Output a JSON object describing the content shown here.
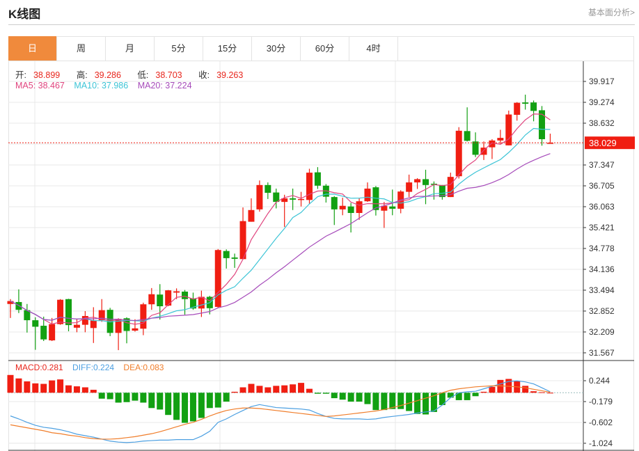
{
  "header": {
    "title": "K线图",
    "link": "基本面分析>"
  },
  "tabs": [
    {
      "label": "日",
      "active": true
    },
    {
      "label": "周"
    },
    {
      "label": "月"
    },
    {
      "label": "5分"
    },
    {
      "label": "15分"
    },
    {
      "label": "30分"
    },
    {
      "label": "60分"
    },
    {
      "label": "4时"
    }
  ],
  "ohlc": {
    "open_label": "开:",
    "open": "38.899",
    "high_label": "高:",
    "high": "39.286",
    "low_label": "低:",
    "low": "38.703",
    "close_label": "收:",
    "close": "39.263"
  },
  "ma": {
    "ma5_label": "MA5: 38.467",
    "ma10_label": "MA10: 37.986",
    "ma20_label": "MA20: 37.224"
  },
  "macd": {
    "macd_label": "MACD:0.281",
    "diff_label": "DIFF:0.224",
    "dea_label": "DEA:0.083"
  },
  "colors": {
    "up": "#f01e12",
    "down": "#12a012",
    "ma5": "#e0447e",
    "ma10": "#3cc4d6",
    "ma20": "#a64bba",
    "diff": "#4b9fe1",
    "dea": "#f07d2a",
    "accent": "#f08a3c"
  },
  "chart_data": [
    {
      "type": "candlestick",
      "current_price": "38.029",
      "y_ticks": [
        "39.917",
        "39.274",
        "38.632",
        "37.347",
        "36.705",
        "36.063",
        "35.421",
        "34.778",
        "34.136",
        "33.494",
        "32.852",
        "32.209",
        "31.567"
      ],
      "ylim": [
        31.567,
        39.917
      ],
      "grid": true,
      "candles": [
        [
          33.07,
          33.22,
          32.64,
          33.16
        ],
        [
          33.13,
          33.52,
          32.79,
          32.89
        ],
        [
          32.88,
          33.07,
          32.19,
          32.57
        ],
        [
          32.57,
          32.66,
          31.66,
          32.37
        ],
        [
          32.4,
          32.68,
          31.93,
          31.98
        ],
        [
          31.95,
          32.64,
          31.93,
          32.45
        ],
        [
          32.45,
          33.22,
          32.43,
          33.2
        ],
        [
          33.22,
          33.23,
          32.23,
          32.42
        ],
        [
          32.34,
          32.61,
          32.2,
          32.43
        ],
        [
          32.43,
          32.85,
          32.2,
          32.7
        ],
        [
          32.33,
          32.97,
          31.87,
          32.56
        ],
        [
          32.57,
          33.22,
          32.52,
          32.88
        ],
        [
          32.89,
          32.95,
          32.08,
          32.18
        ],
        [
          32.18,
          32.63,
          31.65,
          32.61
        ],
        [
          32.63,
          32.66,
          31.86,
          32.24
        ],
        [
          32.25,
          32.6,
          32.22,
          32.32
        ],
        [
          32.31,
          33.11,
          32.11,
          33.06
        ],
        [
          33.06,
          33.56,
          32.89,
          33.37
        ],
        [
          33.36,
          33.68,
          32.59,
          33.0
        ],
        [
          33.02,
          33.5,
          33.0,
          33.49
        ],
        [
          33.42,
          33.55,
          33.22,
          33.46
        ],
        [
          33.45,
          33.5,
          32.74,
          33.22
        ],
        [
          33.24,
          33.42,
          32.89,
          32.93
        ],
        [
          32.93,
          33.48,
          32.67,
          33.29
        ],
        [
          33.29,
          33.32,
          32.75,
          32.94
        ],
        [
          32.98,
          34.76,
          32.96,
          34.73
        ],
        [
          34.7,
          34.75,
          34.16,
          34.48
        ],
        [
          34.5,
          34.62,
          34.18,
          34.46
        ],
        [
          34.45,
          36.04,
          34.45,
          35.62
        ],
        [
          35.6,
          36.32,
          35.6,
          35.96
        ],
        [
          35.98,
          36.87,
          35.91,
          36.73
        ],
        [
          36.73,
          36.81,
          36.3,
          36.49
        ],
        [
          36.5,
          36.62,
          36.01,
          36.21
        ],
        [
          36.21,
          36.43,
          35.44,
          36.32
        ],
        [
          36.32,
          36.62,
          35.96,
          36.28
        ],
        [
          36.27,
          36.52,
          36.07,
          36.3
        ],
        [
          36.27,
          37.23,
          36.14,
          37.11
        ],
        [
          37.12,
          37.28,
          36.61,
          36.71
        ],
        [
          36.71,
          36.76,
          36.19,
          36.37
        ],
        [
          36.36,
          36.39,
          35.5,
          35.98
        ],
        [
          35.98,
          36.34,
          35.8,
          36.09
        ],
        [
          36.07,
          36.18,
          35.27,
          35.87
        ],
        [
          35.87,
          36.32,
          35.66,
          36.23
        ],
        [
          36.23,
          36.81,
          36.21,
          36.62
        ],
        [
          36.66,
          36.7,
          35.79,
          35.96
        ],
        [
          35.94,
          36.21,
          35.41,
          36.09
        ],
        [
          36.07,
          36.59,
          35.8,
          36.0
        ],
        [
          36.0,
          36.57,
          35.86,
          36.53
        ],
        [
          36.52,
          37.05,
          36.36,
          36.81
        ],
        [
          36.81,
          36.94,
          36.61,
          36.91
        ],
        [
          36.91,
          37.2,
          36.14,
          36.73
        ],
        [
          36.77,
          36.84,
          36.28,
          36.75
        ],
        [
          36.73,
          36.73,
          36.28,
          36.36
        ],
        [
          36.36,
          37.11,
          36.36,
          36.98
        ],
        [
          37.0,
          38.51,
          36.93,
          38.4
        ],
        [
          38.39,
          39.12,
          38.07,
          38.09
        ],
        [
          38.07,
          38.35,
          37.59,
          37.66
        ],
        [
          37.66,
          38.07,
          37.5,
          37.88
        ],
        [
          37.89,
          38.14,
          37.53,
          38.1
        ],
        [
          38.1,
          38.43,
          38.0,
          38.18
        ],
        [
          37.95,
          39.02,
          37.95,
          38.9
        ],
        [
          38.89,
          39.28,
          38.71,
          39.26
        ],
        [
          39.27,
          39.51,
          39.05,
          39.23
        ],
        [
          39.27,
          39.33,
          38.69,
          39.01
        ],
        [
          39.03,
          39.16,
          37.94,
          38.14
        ],
        [
          38.02,
          38.31,
          38.01,
          38.03
        ]
      ],
      "candle_fields": [
        "open",
        "high",
        "low",
        "close"
      ]
    },
    {
      "type": "macd",
      "y_ticks": [
        "0.244",
        "-0.179",
        "-0.602",
        "-1.024"
      ],
      "histogram": [
        0.36,
        0.29,
        0.23,
        0.19,
        0.18,
        0.25,
        0.27,
        0.15,
        0.13,
        0.11,
        0.06,
        -0.12,
        -0.13,
        -0.2,
        -0.19,
        -0.16,
        -0.2,
        -0.31,
        -0.34,
        -0.45,
        -0.55,
        -0.61,
        -0.58,
        -0.51,
        -0.31,
        -0.3,
        -0.18,
        0.02,
        0.11,
        0.18,
        0.14,
        0.11,
        0.14,
        0.15,
        0.17,
        0.2,
        0.08,
        -0.02,
        -0.02,
        -0.11,
        -0.14,
        -0.18,
        -0.18,
        -0.23,
        -0.35,
        -0.35,
        -0.33,
        -0.33,
        -0.37,
        -0.43,
        -0.44,
        -0.39,
        -0.25,
        -0.1,
        -0.15,
        -0.15,
        -0.07,
        0.02,
        0.12,
        0.26,
        0.28,
        0.23,
        0.14,
        0.03,
        0.01,
        0.0
      ],
      "diff": [
        -0.47,
        -0.53,
        -0.6,
        -0.66,
        -0.7,
        -0.72,
        -0.75,
        -0.79,
        -0.84,
        -0.87,
        -0.9,
        -0.94,
        -0.98,
        -1.0,
        -1.01,
        -1.0,
        -0.98,
        -0.97,
        -0.96,
        -0.96,
        -0.95,
        -0.95,
        -0.95,
        -0.88,
        -0.78,
        -0.6,
        -0.53,
        -0.44,
        -0.36,
        -0.28,
        -0.24,
        -0.27,
        -0.3,
        -0.31,
        -0.32,
        -0.33,
        -0.35,
        -0.42,
        -0.48,
        -0.52,
        -0.53,
        -0.53,
        -0.53,
        -0.54,
        -0.53,
        -0.5,
        -0.48,
        -0.46,
        -0.44,
        -0.41,
        -0.39,
        -0.37,
        -0.25,
        -0.1,
        0.0,
        0.02,
        0.03,
        0.08,
        0.13,
        0.18,
        0.23,
        0.24,
        0.22,
        0.18,
        0.1,
        0.02
      ],
      "dea": [
        -0.65,
        -0.68,
        -0.71,
        -0.74,
        -0.77,
        -0.81,
        -0.83,
        -0.86,
        -0.88,
        -0.91,
        -0.93,
        -0.94,
        -0.94,
        -0.93,
        -0.91,
        -0.89,
        -0.86,
        -0.83,
        -0.79,
        -0.74,
        -0.69,
        -0.64,
        -0.6,
        -0.54,
        -0.47,
        -0.41,
        -0.36,
        -0.33,
        -0.31,
        -0.31,
        -0.32,
        -0.34,
        -0.36,
        -0.38,
        -0.4,
        -0.42,
        -0.44,
        -0.46,
        -0.48,
        -0.47,
        -0.45,
        -0.43,
        -0.41,
        -0.39,
        -0.37,
        -0.34,
        -0.3,
        -0.26,
        -0.21,
        -0.16,
        -0.11,
        -0.06,
        0.0,
        0.05,
        0.08,
        0.1,
        0.12,
        0.13,
        0.14,
        0.14,
        0.13,
        0.12,
        0.1,
        0.07,
        0.04,
        0.01
      ]
    }
  ]
}
